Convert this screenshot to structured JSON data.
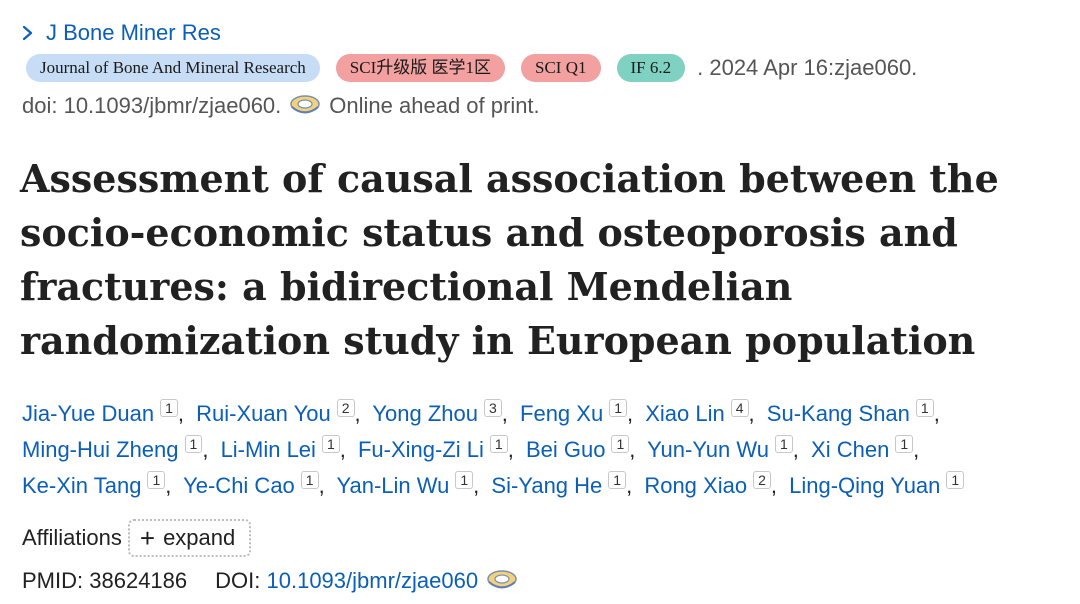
{
  "journal": {
    "short_name": "J Bone Miner Res"
  },
  "badges": {
    "journal_full": "Journal of Bone And Mineral Research",
    "sci_upgrade": "SCI升级版 医学1区",
    "sci_quartile": "SCI Q1",
    "impact_factor": "IF 6.2"
  },
  "citation": {
    "date_line": ". 2024 Apr 16:zjae060.",
    "doi_text": "doi: 10.1093/jbmr/zjae060.",
    "status": "Online ahead of print."
  },
  "title": "Assessment of causal association between the socio-economic status and osteoporosis and fractures: a bidirectional Mendelian randomization study in European population",
  "authors": [
    {
      "name": "Jia-Yue Duan",
      "aff": "1"
    },
    {
      "name": "Rui-Xuan You",
      "aff": "2"
    },
    {
      "name": "Yong Zhou",
      "aff": "3"
    },
    {
      "name": "Feng Xu",
      "aff": "1"
    },
    {
      "name": "Xiao Lin",
      "aff": "4"
    },
    {
      "name": "Su-Kang Shan",
      "aff": "1"
    },
    {
      "name": "Ming-Hui Zheng",
      "aff": "1"
    },
    {
      "name": "Li-Min Lei",
      "aff": "1"
    },
    {
      "name": "Fu-Xing-Zi Li",
      "aff": "1"
    },
    {
      "name": "Bei Guo",
      "aff": "1"
    },
    {
      "name": "Yun-Yun Wu",
      "aff": "1"
    },
    {
      "name": "Xi Chen",
      "aff": "1"
    },
    {
      "name": "Ke-Xin Tang",
      "aff": "1"
    },
    {
      "name": "Ye-Chi Cao",
      "aff": "1"
    },
    {
      "name": "Yan-Lin Wu",
      "aff": "1"
    },
    {
      "name": "Si-Yang He",
      "aff": "1"
    },
    {
      "name": "Rong Xiao",
      "aff": "2"
    },
    {
      "name": "Ling-Qing Yuan",
      "aff": "1"
    }
  ],
  "affiliations": {
    "label": "Affiliations",
    "expand_label": "expand"
  },
  "identifiers": {
    "pmid_label": "PMID:",
    "pmid_value": "38624186",
    "doi_label": "DOI:",
    "doi_value": "10.1093/jbmr/zjae060"
  },
  "colors": {
    "link": "#0b5fb8",
    "journal_badge": "#c7dcf5",
    "sci_badge": "#f2a0a0",
    "if_badge": "#7fd1c1"
  },
  "icons": [
    "chevron-right-icon",
    "tape-icon",
    "plus-icon"
  ]
}
